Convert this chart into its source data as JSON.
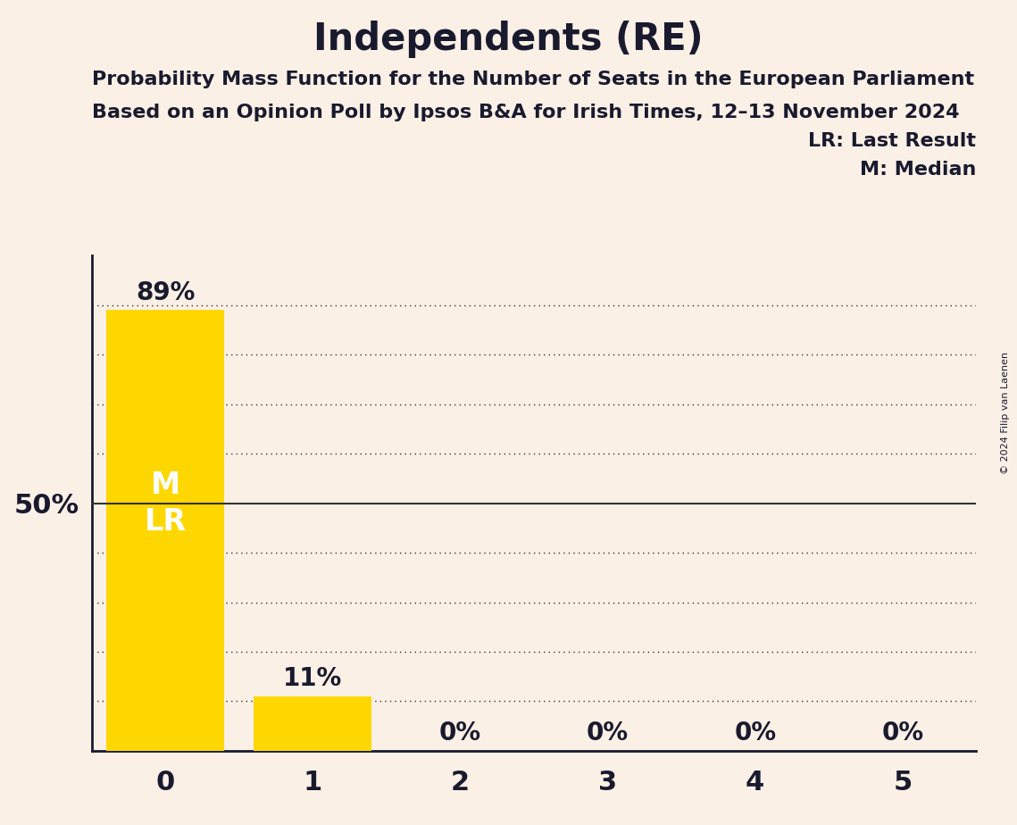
{
  "title": "Independents (RE)",
  "subtitle1": "Probability Mass Function for the Number of Seats in the European Parliament",
  "subtitle2": "Based on an Opinion Poll by Ipsos B&A for Irish Times, 12–13 November 2024",
  "copyright": "© 2024 Filip van Laenen",
  "categories": [
    0,
    1,
    2,
    3,
    4,
    5
  ],
  "values": [
    0.89,
    0.11,
    0.0,
    0.0,
    0.0,
    0.0
  ],
  "bar_color": "#FFD700",
  "background_color": "#FAF0E6",
  "bar_labels": [
    "89%",
    "11%",
    "0%",
    "0%",
    "0%",
    "0%"
  ],
  "ylabel_50": "50%",
  "legend_lr": "LR: Last Result",
  "legend_m": "M: Median",
  "bar_label_color_dark": "#1a1a2e",
  "bar_label_color_white": "#FFFFFF",
  "title_fontsize": 30,
  "subtitle_fontsize": 16,
  "bar_label_fontsize": 20,
  "axis_tick_fontsize": 22,
  "ylabel_fontsize": 22,
  "legend_fontsize": 16,
  "ylim": [
    0,
    1.0
  ],
  "dotted_lines": [
    0.1,
    0.2,
    0.3,
    0.4,
    0.6,
    0.7,
    0.8,
    0.9
  ],
  "solid_line": 0.5
}
